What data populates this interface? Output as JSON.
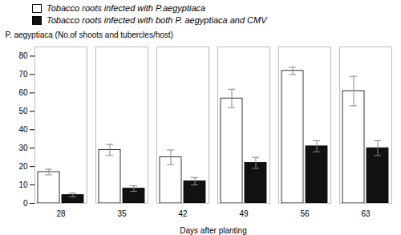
{
  "chart_data": {
    "type": "bar",
    "categories": [
      28,
      35,
      42,
      49,
      56,
      63
    ],
    "series": [
      {
        "name": "Tobacco roots infected with P.aegyptiaca",
        "color": "#ffffff",
        "values": [
          17,
          29,
          25,
          57,
          72,
          61
        ],
        "errors": [
          1.5,
          3,
          4,
          5,
          2,
          8
        ]
      },
      {
        "name": "Tobacco roots infected with both P. aegyptiaca and CMV",
        "color": "#111111",
        "values": [
          4.5,
          8,
          12,
          22,
          31,
          30
        ],
        "errors": [
          1,
          1.5,
          2,
          3,
          3,
          4
        ]
      }
    ],
    "xlabel": "Days after planting",
    "ylabel": "P. aegyptiaca (No.of shoots and tubercles/host)",
    "ylim": [
      0,
      85
    ],
    "yticks": [
      0,
      10,
      20,
      30,
      40,
      50,
      60,
      70,
      80
    ],
    "legend": "upper left",
    "grid": false
  }
}
